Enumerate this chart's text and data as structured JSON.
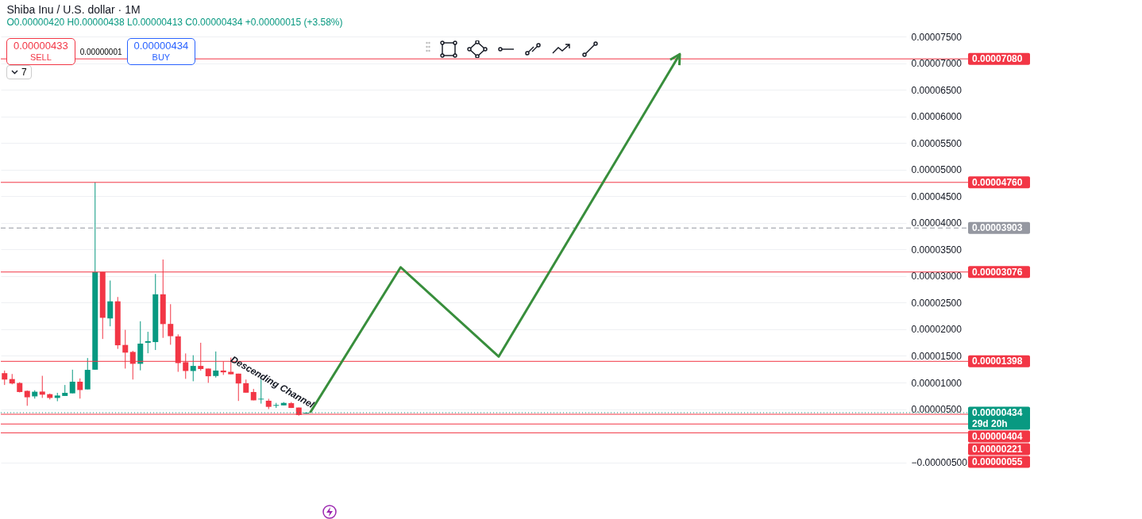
{
  "chart_data": {
    "type": "candlestick",
    "title": "Shiba Inu / U.S. dollar · 1M",
    "subtitle": "O0.00000420 H0.00000438 L0.00000413 C0.00000434 +0.00000015 (+3.58%)",
    "annotations": [
      "Descending Channel",
      "0.00000433",
      "SELL",
      "0.00000001",
      "0.00000434",
      "BUY",
      "7"
    ],
    "categories": [
      null,
      null,
      null,
      null,
      null,
      null,
      null,
      null,
      null,
      null,
      null,
      null,
      null,
      null,
      null,
      null,
      null,
      null,
      null,
      null,
      null,
      null,
      null,
      null,
      null,
      null,
      null,
      null,
      null,
      null,
      null,
      null,
      null,
      null,
      null,
      null,
      null,
      null,
      null,
      null,
      null,
      null,
      null,
      null,
      null,
      null,
      null,
      null,
      null,
      null,
      null,
      null,
      null,
      null,
      null,
      null,
      null,
      null,
      null,
      null,
      null,
      null,
      null,
      null,
      null,
      null,
      null,
      null,
      null,
      null,
      null,
      null,
      null,
      null,
      null,
      null,
      null,
      null,
      null,
      null,
      null,
      null,
      null,
      null,
      null,
      null,
      null,
      null,
      null,
      null,
      null,
      null,
      null,
      null,
      null,
      null,
      null,
      null,
      null,
      null,
      null,
      null,
      null,
      null,
      null,
      null,
      null,
      null,
      null,
      null,
      null,
      null,
      null,
      null,
      null,
      null,
      null,
      null,
      null,
      null
    ],
    "ohlc": [
      [
        1.176e-05,
        1.225e-05,
        9.54e-06,
        1.056e-05
      ],
      [
        1.065e-05,
        1.16e-05,
        9.66e-06,
        9.82e-06
      ],
      [
        9.91e-06,
        1.007e-05,
        8.14e-06,
        8.22e-06
      ],
      [
        8.43e-06,
        8.51e-06,
        5.63e-06,
        7.23e-06
      ],
      [
        7.4e-06,
        8.55e-06,
        6.98e-06,
        8.27e-06
      ],
      [
        8.3e-06,
        1.126e-05,
        7.11e-06,
        7.72e-06
      ],
      [
        7.81e-06,
        7.93e-06,
        6.82e-06,
        7.11e-06
      ],
      [
        7.11e-06,
        8.06e-06,
        6.49e-06,
        7.56e-06
      ],
      [
        7.48e-06,
        9.54e-06,
        7.48e-06,
        8.06e-06
      ],
      [
        7.97e-06,
        1.241e-05,
        7.97e-06,
        1.015e-05
      ],
      [
        1.015e-05,
        1.077e-05,
        6.98e-06,
        8.59e-06
      ],
      [
        8.71e-06,
        1.46e-05,
        8.71e-06,
        1.238e-05
      ],
      [
        1.241e-05,
        4.76e-05,
        1.241e-05,
        3.076e-05
      ],
      [
        3.076e-05,
        3.076e-05,
        1.818e-05,
        2.216e-05
      ],
      [
        2.204e-05,
        2.916e-05,
        2.056e-05,
        2.525e-05
      ],
      [
        2.525e-05,
        2.607e-05,
        1.632e-05,
        1.7e-05
      ],
      [
        1.706e-05,
        1.99e-05,
        1.262e-05,
        1.562e-05
      ],
      [
        1.575e-05,
        1.595e-05,
        1.056e-05,
        1.352e-05
      ],
      [
        1.352e-05,
        2.151e-05,
        1.229e-05,
        1.731e-05
      ],
      [
        1.747e-05,
        1.953e-05,
        1.55e-05,
        1.777e-05
      ],
      [
        1.76e-05,
        3.039e-05,
        1.611e-05,
        2.657e-05
      ],
      [
        2.657e-05,
        3.311e-05,
        1.839e-05,
        2.098e-05
      ],
      [
        2.101e-05,
        2.472e-05,
        1.71e-05,
        1.871e-05
      ],
      [
        1.867e-05,
        1.904e-05,
        1.201e-05,
        1.365e-05
      ],
      [
        1.382e-05,
        1.546e-05,
        1.069e-05,
        1.217e-05
      ],
      [
        1.217e-05,
        1.513e-05,
        1.024e-05,
        1.312e-05
      ],
      [
        1.312e-05,
        1.747e-05,
        1.222e-05,
        1.254e-05
      ],
      [
        1.262e-05,
        1.262e-05,
        9.94e-06,
        1.118e-05
      ],
      [
        1.123e-05,
        1.583e-05,
        1.093e-05,
        1.225e-05
      ],
      [
        1.225e-05,
        1.398e-05,
        1.143e-05,
        1.192e-05
      ],
      [
        1.201e-05,
        1.468e-05,
        1.155e-05,
        1.155e-05
      ],
      [
        1.167e-05,
        1.167e-05,
        6.54e-06,
        9.82e-06
      ],
      [
        9.87e-06,
        1.056e-05,
        8.09e-06,
        8.09e-06
      ],
      [
        8.22e-06,
        8.8e-06,
        6.66e-06,
        6.66e-06
      ],
      [
        6.82e-06,
        1.056e-05,
        6.04e-06,
        6.96e-06
      ],
      [
        6.58e-06,
        6.95e-06,
        5.01e-06,
        5.43e-06
      ],
      [
        5.63e-06,
        6.17e-06,
        5.22e-06,
        5.78e-06
      ],
      [
        5.71e-06,
        6.33e-06,
        5.71e-06,
        6.17e-06
      ],
      [
        6.12e-06,
        6.33e-06,
        5.22e-06,
        5.22e-06
      ],
      [
        5.3e-06,
        5.3e-06,
        3.77e-06,
        3.9e-06
      ],
      [
        4.2e-06,
        4.38e-06,
        4.13e-06,
        4.34e-06
      ],
      null,
      null,
      null,
      null,
      null,
      null,
      null,
      null,
      null,
      null,
      null,
      null,
      null,
      null,
      null,
      null,
      null,
      null,
      null,
      null,
      null,
      null,
      null,
      null,
      null,
      null,
      null,
      null,
      null,
      null,
      null,
      null,
      null,
      null,
      null,
      null,
      null,
      null,
      null,
      null,
      null,
      null,
      null,
      null,
      null,
      null,
      null,
      null,
      null,
      null,
      null,
      null,
      null,
      null,
      null,
      null,
      null,
      null,
      null,
      null,
      null,
      null,
      null,
      null,
      null,
      null,
      null,
      null,
      null,
      null,
      null,
      null,
      null,
      null,
      null,
      null,
      null,
      null,
      null
    ],
    "ylim": [
      -5.5e-06,
      7.5e-05
    ],
    "yticks": [
      {
        "value": -5e-06,
        "label": "−0.00000500"
      },
      {
        "value": 5e-06,
        "label": "0.00000500"
      },
      {
        "value": 1e-05,
        "label": "0.00001000"
      },
      {
        "value": 1.5e-05,
        "label": "0.00001500"
      },
      {
        "value": 2e-05,
        "label": "0.00002000"
      },
      {
        "value": 2.5e-05,
        "label": "0.00002500"
      },
      {
        "value": 3e-05,
        "label": "0.00003000"
      },
      {
        "value": 3.5e-05,
        "label": "0.00003500"
      },
      {
        "value": 4e-05,
        "label": "0.00004000"
      },
      {
        "value": 4.5e-05,
        "label": "0.00004500"
      },
      {
        "value": 5e-05,
        "label": "0.00005000"
      },
      {
        "value": 5.5e-05,
        "label": "0.00005500"
      },
      {
        "value": 6e-05,
        "label": "0.00006000"
      },
      {
        "value": 6.5e-05,
        "label": "0.00006500"
      },
      {
        "value": 7e-05,
        "label": "0.00007000"
      },
      {
        "value": 7.5e-05,
        "label": "0.00007500"
      }
    ],
    "ref_lines": [
      {
        "axis": "y",
        "value": 7.08e-05,
        "label": "0.00007080",
        "color": "#f23645"
      },
      {
        "axis": "y",
        "value": 4.76e-05,
        "label": "0.00004760",
        "color": "#f23645"
      },
      {
        "axis": "y",
        "value": 3.903e-05,
        "label": "0.00003903",
        "color": "#9598a1",
        "line_style": "dashed"
      },
      {
        "axis": "y",
        "value": 3.076e-05,
        "label": "0.00003076",
        "color": "#f23645"
      },
      {
        "axis": "y",
        "value": 1.398e-05,
        "label": "0.00001398",
        "color": "#f23645"
      },
      {
        "axis": "y",
        "value": 4.34e-06,
        "label": "0.00000434\n29d 20h",
        "color": "#089981",
        "line_style": "dotted"
      },
      {
        "axis": "y",
        "value": 4.04e-06,
        "label": "0.00000404",
        "color": "#f23645"
      },
      {
        "axis": "y",
        "value": 2.21e-06,
        "label": "0.00000221",
        "color": "#f23645"
      },
      {
        "axis": "y",
        "value": 5.5e-07,
        "label": "0.00000055",
        "color": "#f23645"
      }
    ],
    "grid": "y",
    "tick_labels": "y"
  }
}
